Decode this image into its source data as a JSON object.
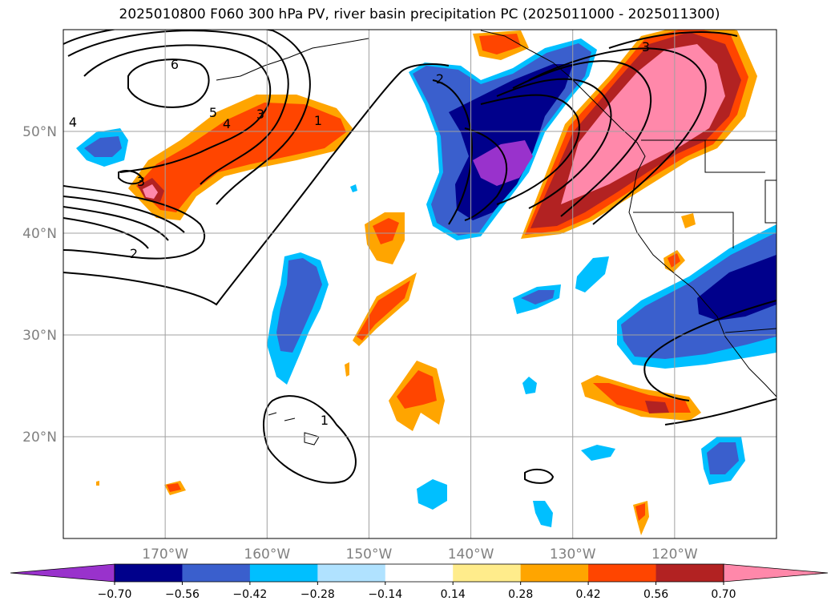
{
  "title": "2025010800 F060 300 hPa PV, river basin precipitation PC (2025011000 - 2025011300)",
  "chart_data": {
    "type": "map",
    "projection": "lat-lon",
    "lon_range": [
      -180,
      -110
    ],
    "lat_range": [
      10,
      60
    ],
    "lat_ticks": [
      {
        "value": 20,
        "label": "20°N"
      },
      {
        "value": 30,
        "label": "30°N"
      },
      {
        "value": 40,
        "label": "40°N"
      },
      {
        "value": 50,
        "label": "50°N"
      }
    ],
    "lon_ticks": [
      {
        "value": -170,
        "label": "170°W"
      },
      {
        "value": -160,
        "label": "160°W"
      },
      {
        "value": -150,
        "label": "150°W"
      },
      {
        "value": -140,
        "label": "140°W"
      },
      {
        "value": -130,
        "label": "130°W"
      },
      {
        "value": -120,
        "label": "120°W"
      }
    ],
    "grid": true,
    "colorbar": {
      "orientation": "horizontal",
      "extend": "both",
      "bounds": [
        -0.7,
        -0.56,
        -0.42,
        -0.28,
        -0.14,
        0.14,
        0.28,
        0.42,
        0.56,
        0.7
      ],
      "tick_labels": [
        "−0.70",
        "−0.56",
        "−0.42",
        "−0.28",
        "−0.14",
        "0.14",
        "0.28",
        "0.42",
        "0.56",
        "0.70"
      ],
      "colors": [
        "#9932CC",
        "#00008B",
        "#3A5FCD",
        "#00BFFF",
        "#B0E2FF",
        "#FFFFFF",
        "#FFEC8B",
        "#FFA500",
        "#FF4500",
        "#B22222",
        "#FF88AA"
      ]
    },
    "pv_contour_labels": [
      "6",
      "5",
      "4",
      "3",
      "2",
      "1",
      "3",
      "2",
      "1",
      "4",
      "3"
    ],
    "pv_contour_levels": [
      1,
      2,
      3,
      4,
      5,
      6
    ]
  }
}
